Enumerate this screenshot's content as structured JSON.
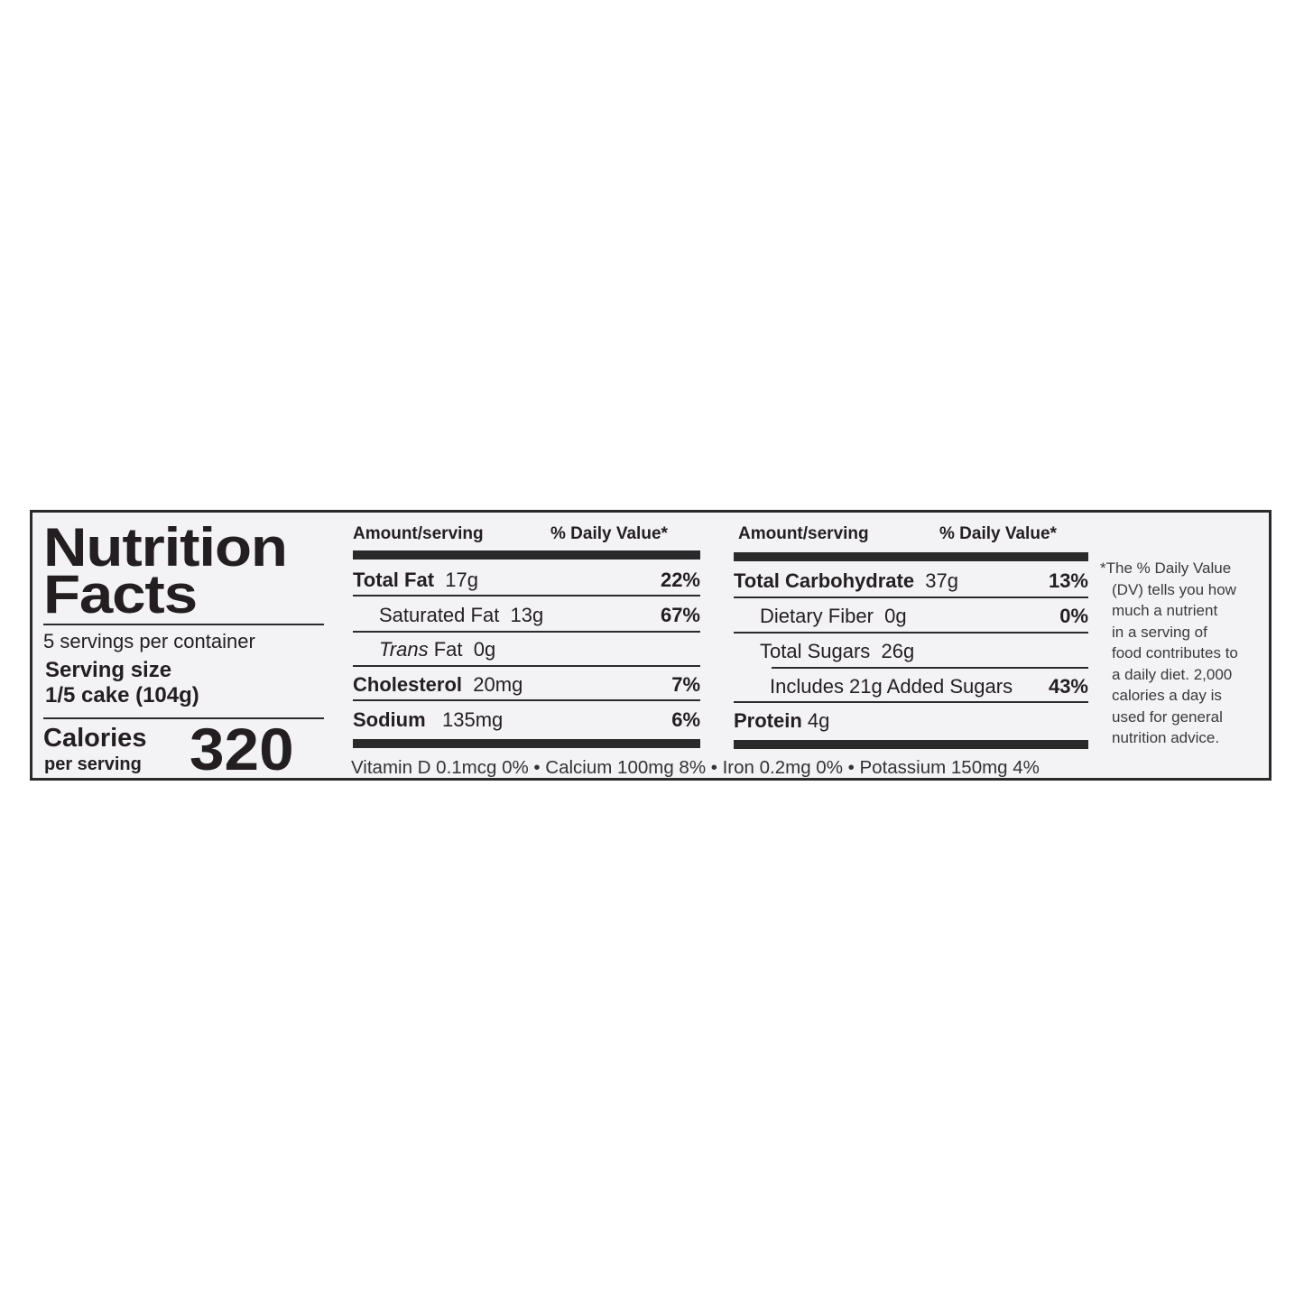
{
  "title_line1": "Nutrition",
  "title_line2": "Facts",
  "servings_per_container": "5 servings per container",
  "serving_size_label": "Serving size",
  "serving_size_value": "1/5 cake (104g)",
  "calories_label": "Calories",
  "calories_sub": "per serving",
  "calories_value": "320",
  "header": {
    "amount": "Amount/serving",
    "dv": "% Daily Value*"
  },
  "left_rows": [
    {
      "name": "Total Fat",
      "amount": "17g",
      "dv": "22%"
    },
    {
      "name": "Saturated Fat",
      "amount": "13g",
      "dv": "67%"
    },
    {
      "name_italic": "Trans",
      "name": " Fat",
      "amount": "0g",
      "dv": ""
    },
    {
      "name": "Cholesterol",
      "amount": "20mg",
      "dv": "7%"
    },
    {
      "name": "Sodium",
      "amount": "135mg",
      "dv": "6%"
    }
  ],
  "right_rows": [
    {
      "name": "Total Carbohydrate",
      "amount": "37g",
      "dv": "13%"
    },
    {
      "name": "Dietary Fiber",
      "amount": "0g",
      "dv": "0%"
    },
    {
      "name": "Total Sugars",
      "amount": "26g",
      "dv": ""
    },
    {
      "name": "Includes 21g Added Sugars",
      "amount": "",
      "dv": "43%"
    },
    {
      "name": "Protein",
      "amount": "4g",
      "dv": ""
    }
  ],
  "micronutrients": "Vitamin D 0.1mcg 0% • Calcium 100mg 8% •  Iron 0.2mg 0% • Potassium 150mg 4%",
  "footnote": [
    "*The % Daily Value",
    "(DV) tells you how",
    "much a nutrient",
    "in a serving of",
    "food contributes to",
    "a daily diet. 2,000",
    "calories a day is",
    "used for general",
    "nutrition advice."
  ]
}
